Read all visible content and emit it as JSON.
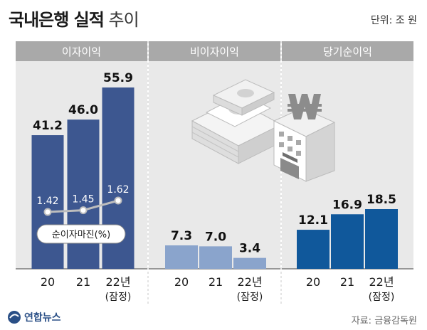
{
  "header": {
    "title_bold": "국내은행 실적",
    "title_light": "추이",
    "unit": "단위: 조 원"
  },
  "footer": {
    "source": "자료: 금융감독원",
    "logo_text": "연합뉴스"
  },
  "colors": {
    "dark_blue": "#3d5790",
    "light_blue": "#8aa4cc",
    "navy": "#10589b",
    "header_bar": "#a9a9a9",
    "panel_bg": "#e9e9e9"
  },
  "chart_data": [
    {
      "type": "bar",
      "title": "이자이익",
      "categories": [
        "20",
        "21",
        "22년\n(잠정)"
      ],
      "values": [
        41.2,
        46.0,
        55.9
      ],
      "value_labels": [
        "41.2",
        "46.0",
        "55.9"
      ],
      "overlay_line": {
        "name": "순이자마진(%)",
        "values": [
          1.42,
          1.45,
          1.62
        ],
        "value_labels": [
          "1.42",
          "1.45",
          "1.62"
        ]
      }
    },
    {
      "type": "bar",
      "title": "비이자이익",
      "categories": [
        "20",
        "21",
        "22년\n(잠정)"
      ],
      "values": [
        7.3,
        7.0,
        3.4
      ],
      "value_labels": [
        "7.3",
        "7.0",
        "3.4"
      ]
    },
    {
      "type": "bar",
      "title": "당기순이익",
      "categories": [
        "20",
        "21",
        "22년\n(잠정)"
      ],
      "values": [
        12.1,
        16.9,
        18.5
      ],
      "value_labels": [
        "12.1",
        "16.9",
        "18.5"
      ]
    }
  ]
}
